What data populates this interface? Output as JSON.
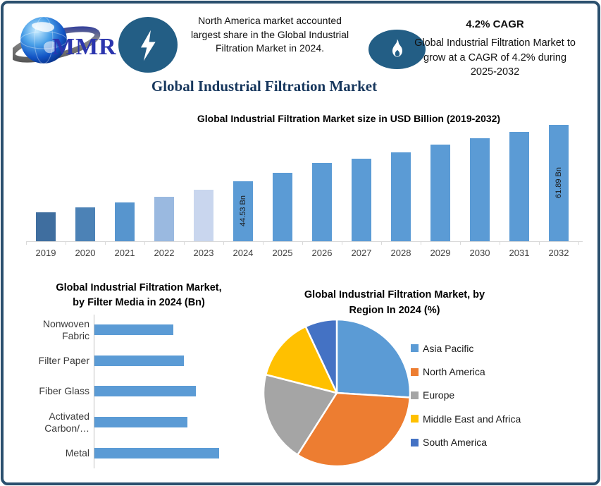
{
  "header": {
    "logo_text": "MMR",
    "na_highlight": "North America market accounted largest share in the Global Industrial Filtration Market in 2024.",
    "main_title": "Global Industrial Filtration Market",
    "cagr_title": "4.2% CAGR",
    "cagr_text": "Global Industrial Filtration Market to grow at a CAGR of 4.2% during 2025-2032",
    "accent_color": "#235e85"
  },
  "frame": {
    "border_color": "#2b506e",
    "background": "#ffffff"
  },
  "chart_data": [
    {
      "type": "bar",
      "title": "Global Industrial Filtration Market size in USD Billion (2019-2032)",
      "unit": "USD Billion",
      "categories": [
        "2019",
        "2020",
        "2021",
        "2022",
        "2023",
        "2024",
        "2025",
        "2026",
        "2027",
        "2028",
        "2029",
        "2030",
        "2031",
        "2032"
      ],
      "values": [
        35.3,
        36.8,
        38.3,
        40.0,
        42.1,
        44.53,
        47.3,
        50.3,
        51.4,
        53.5,
        55.7,
        57.8,
        59.7,
        61.89
      ],
      "bar_value_labels": [
        "",
        "",
        "",
        "",
        "",
        "44.53 Bn",
        "",
        "",
        "",
        "",
        "",
        "",
        "",
        "61.89 Bn"
      ],
      "bar_colors": [
        "#3f6e9f",
        "#4c82b6",
        "#5795ce",
        "#9ab9e0",
        "#c9d6ee",
        "#5b9bd5",
        "#5b9bd5",
        "#5b9bd5",
        "#5b9bd5",
        "#5b9bd5",
        "#5b9bd5",
        "#5b9bd5",
        "#5b9bd5",
        "#5b9bd5"
      ],
      "ylim": [
        26.4,
        62
      ],
      "grid": false,
      "legend": false
    },
    {
      "type": "bar",
      "orientation": "horizontal",
      "title": "Global Industrial Filtration Market, by Filter Media in 2024 (Bn)",
      "title_line1": "Global Industrial Filtration Market,",
      "title_line2": "by Filter Media in 2024 (Bn)",
      "unit": "Bn",
      "categories": [
        "Nonwoven Fabric",
        "Filter Paper",
        "Fiber Glass",
        "Activated Carbon/…",
        "Metal"
      ],
      "category_lines": [
        [
          "Nonwoven",
          "Fabric"
        ],
        [
          "Filter Paper"
        ],
        [
          "Fiber Glass"
        ],
        [
          "Activated",
          "Carbon/…"
        ],
        [
          "Metal"
        ]
      ],
      "values": [
        7.2,
        8.2,
        9.3,
        8.5,
        11.4
      ],
      "bar_color": "#5b9bd5",
      "grid": false,
      "legend": false
    },
    {
      "type": "pie",
      "title": "Global Industrial Filtration Market, by Region In 2024 (%)",
      "title_line1": "Global Industrial Filtration Market, by",
      "title_line2": "Region In 2024 (%)",
      "labels": [
        "Asia Pacific",
        "North America",
        "Europe",
        "Middle East and Africa",
        "South America"
      ],
      "values": [
        26,
        33,
        20,
        14,
        7
      ],
      "colors": [
        "#5b9bd5",
        "#ed7d31",
        "#a5a5a5",
        "#ffc000",
        "#4472c4"
      ],
      "start_angle_deg": 0,
      "legend_position": "right"
    }
  ]
}
